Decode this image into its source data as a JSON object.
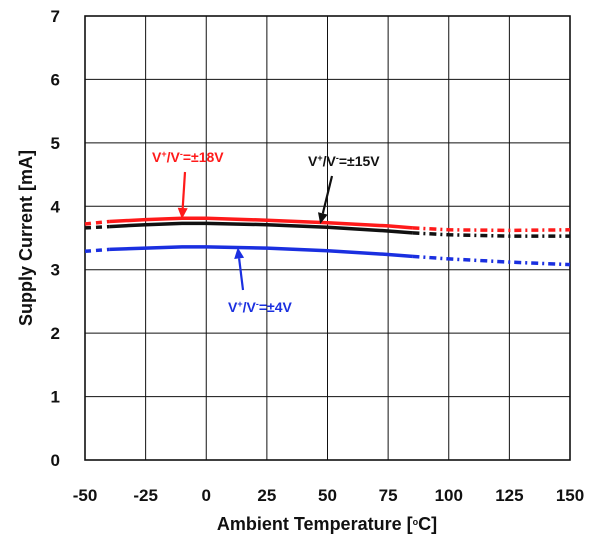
{
  "chart_data": {
    "type": "line",
    "title": "",
    "xlabel": "Ambient Temperature [°C]",
    "xlabel_parts": {
      "pre": "Ambient Temperature [",
      "sup": "o",
      "post": "C]"
    },
    "ylabel": "Supply Current [mA]",
    "xlim": [
      -50,
      150
    ],
    "ylim": [
      0,
      7
    ],
    "grid": true,
    "x_ticks": [
      -50,
      -25,
      0,
      25,
      50,
      75,
      100,
      125,
      150
    ],
    "y_ticks": [
      0,
      1,
      2,
      3,
      4,
      5,
      6,
      7
    ],
    "series": [
      {
        "name": "V+/V-=±18V",
        "color": "#ff1a1a",
        "solid": {
          "x": [
            -40,
            -25,
            -10,
            0,
            25,
            50,
            75,
            85
          ],
          "y": [
            3.76,
            3.79,
            3.81,
            3.81,
            3.78,
            3.74,
            3.69,
            3.66
          ]
        },
        "extrapolated": {
          "x": [
            -50,
            -40
          ],
          "y": [
            3.72,
            3.76
          ]
        },
        "extrapolated2": {
          "x": [
            85,
            100,
            125,
            150
          ],
          "y": [
            3.66,
            3.63,
            3.62,
            3.63
          ]
        }
      },
      {
        "name": "V+/V-=±15V",
        "color": "#111111",
        "solid": {
          "x": [
            -40,
            -25,
            -10,
            0,
            25,
            50,
            75,
            85
          ],
          "y": [
            3.68,
            3.71,
            3.73,
            3.73,
            3.71,
            3.67,
            3.61,
            3.58
          ]
        },
        "extrapolated": {
          "x": [
            -50,
            -40
          ],
          "y": [
            3.66,
            3.68
          ]
        },
        "extrapolated2": {
          "x": [
            85,
            100,
            125,
            150
          ],
          "y": [
            3.58,
            3.55,
            3.53,
            3.53
          ]
        }
      },
      {
        "name": "V+/V-=±4V",
        "color": "#1a2fe0",
        "solid": {
          "x": [
            -40,
            -25,
            -10,
            0,
            25,
            50,
            75,
            85
          ],
          "y": [
            3.32,
            3.34,
            3.36,
            3.36,
            3.34,
            3.3,
            3.24,
            3.21
          ]
        },
        "extrapolated": {
          "x": [
            -50,
            -40
          ],
          "y": [
            3.29,
            3.32
          ]
        },
        "extrapolated2": {
          "x": [
            85,
            100,
            125,
            150
          ],
          "y": [
            3.21,
            3.17,
            3.12,
            3.08
          ]
        }
      }
    ],
    "annotations": [
      {
        "parts": [
          "V",
          "+",
          "/V",
          "-",
          "=±18V"
        ],
        "color": "#ff1a1a",
        "arrow_to": {
          "x": -10,
          "y": 3.8
        }
      },
      {
        "parts": [
          "V",
          "+",
          "/V",
          "-",
          "=±15V"
        ],
        "color": "#111111",
        "arrow_to": {
          "x": 47,
          "y": 3.72
        }
      },
      {
        "parts": [
          "V",
          "+",
          "/V",
          "-",
          "=±4V"
        ],
        "color": "#1a2fe0",
        "arrow_to": {
          "x": 13,
          "y": 3.35
        }
      }
    ]
  }
}
